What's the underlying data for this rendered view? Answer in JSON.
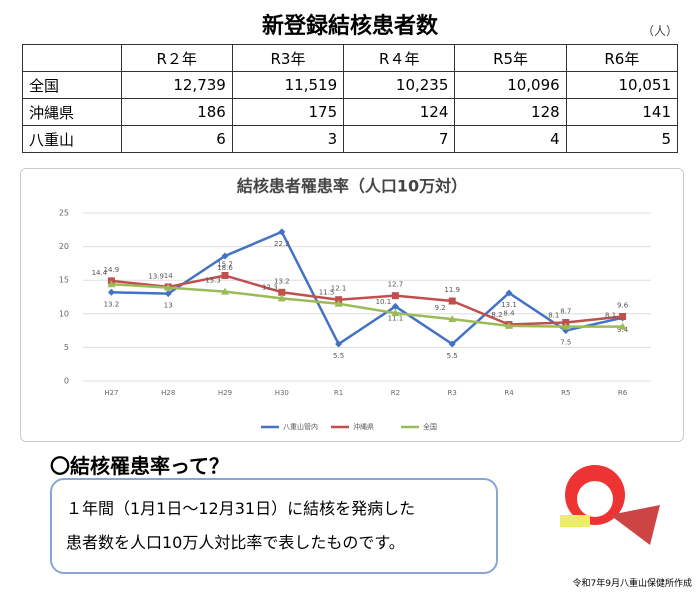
{
  "header": {
    "title": "新登録結核患者数",
    "unit": "（人）"
  },
  "table": {
    "columns": [
      "R２年",
      "R3年",
      "R４年",
      "R5年",
      "R6年"
    ],
    "rows": [
      {
        "label": "全国",
        "cells": [
          "12,739",
          "11,519",
          "10,235",
          "10,096",
          "10,051"
        ]
      },
      {
        "label": "沖縄県",
        "cells": [
          "186",
          "175",
          "124",
          "128",
          "141"
        ]
      },
      {
        "label": "八重山",
        "cells": [
          "6",
          "3",
          "7",
          "4",
          "5"
        ]
      }
    ]
  },
  "chart_data": {
    "type": "line",
    "title": "結核患者罹患率（人口10万対）",
    "categories": [
      "H27",
      "H28",
      "H29",
      "H30",
      "R1",
      "R2",
      "R3",
      "R4",
      "R5",
      "R6"
    ],
    "series": [
      {
        "name": "八重山管内",
        "color": "#4472c4",
        "values": [
          13.2,
          13,
          18.6,
          22.2,
          5.5,
          11.1,
          5.5,
          13.1,
          7.5,
          9.4
        ]
      },
      {
        "name": "沖縄県",
        "color": "#c0504d",
        "values": [
          14.9,
          14,
          15.7,
          13.2,
          12.1,
          12.7,
          11.9,
          8.4,
          8.7,
          9.6
        ]
      },
      {
        "name": "全国",
        "color": "#9bbb59",
        "values": [
          14.4,
          13.9,
          13.3,
          12.3,
          11.5,
          10.1,
          9.2,
          8.2,
          8.1,
          8.1
        ]
      }
    ],
    "ylim": [
      0,
      25
    ],
    "yticks": [
      0,
      5,
      10,
      15,
      20,
      25
    ],
    "grid": true,
    "legend": "bottom"
  },
  "section": {
    "heading": "〇結核罹患率って？",
    "lines": [
      "１年間（1月1日～12月31日）に結核を発病した",
      "患者数を人口10万人対比率で表したものです。"
    ]
  },
  "footer": {
    "credit": "令和7年9月八重山保健所作成"
  }
}
